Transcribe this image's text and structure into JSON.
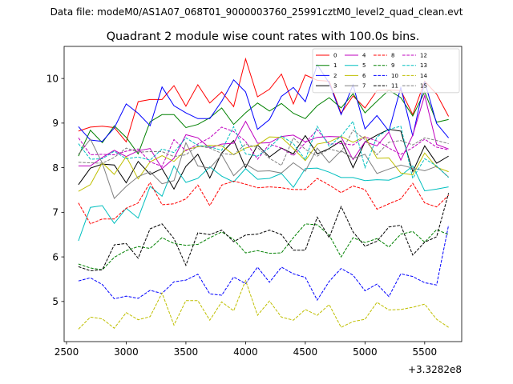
{
  "suptitle": "Data file: modeM0/AS1A07_068T01_9000003760_25991cztM0_level2_quad_clean.evt",
  "chart_data": {
    "type": "line",
    "title": "Quadrant 2 module wise count rates with 100.0s bins.",
    "xlabel": "",
    "ylabel": "",
    "x_offset_label": "+3.3282e8",
    "xlim": [
      2480,
      5810
    ],
    "ylim": [
      4.1,
      10.72
    ],
    "xticks": [
      2500,
      3000,
      3500,
      4000,
      4500,
      5000,
      5500
    ],
    "yticks": [
      5,
      6,
      7,
      8,
      9,
      10
    ],
    "grid": false,
    "legend_position": "top-right",
    "legend_columns": 4,
    "x": [
      2600,
      2700,
      2800,
      2900,
      3000,
      3100,
      3200,
      3300,
      3400,
      3500,
      3600,
      3700,
      3800,
      3900,
      4000,
      4100,
      4200,
      4300,
      4400,
      4500,
      4600,
      4700,
      4800,
      4900,
      5000,
      5100,
      5200,
      5300,
      5400,
      5500,
      5600,
      5700
    ],
    "series": [
      {
        "name": "0",
        "color": "#ff0000",
        "dash": "solid",
        "values": [
          8.82,
          8.91,
          8.93,
          8.9,
          8.58,
          9.48,
          9.53,
          9.53,
          9.84,
          9.38,
          9.86,
          9.45,
          9.7,
          9.37,
          10.44,
          9.59,
          9.76,
          10.1,
          9.43,
          10.08,
          9.96,
          9.94,
          9.22,
          9.61,
          9.34,
          9.73,
          9.74,
          9.73,
          9.19,
          9.94,
          9.65,
          9.15
        ]
      },
      {
        "name": "1",
        "color": "#008000",
        "dash": "solid",
        "values": [
          8.26,
          8.84,
          8.56,
          8.94,
          8.68,
          8.31,
          9.03,
          9.19,
          9.19,
          8.9,
          8.97,
          9.12,
          9.34,
          8.97,
          9.23,
          9.45,
          9.27,
          9.44,
          9.22,
          9.1,
          9.39,
          9.57,
          9.34,
          9.66,
          9.23,
          9.49,
          9.74,
          9.57,
          9.16,
          9.7,
          9.02,
          9.08
        ]
      },
      {
        "name": "2",
        "color": "#0000ff",
        "dash": "solid",
        "values": [
          8.92,
          8.62,
          8.59,
          8.89,
          9.43,
          9.22,
          8.94,
          9.81,
          9.39,
          9.23,
          9.1,
          9.1,
          9.49,
          9.97,
          9.7,
          8.86,
          9.08,
          9.6,
          9.8,
          9.48,
          10.31,
          9.9,
          9.19,
          9.86,
          8.87,
          9.17,
          8.82,
          9.8,
          8.71,
          9.93,
          8.99,
          8.67
        ]
      },
      {
        "name": "3",
        "color": "#000000",
        "dash": "solid",
        "values": [
          7.62,
          7.99,
          8.08,
          8.06,
          7.66,
          8.14,
          7.85,
          7.98,
          7.52,
          8.03,
          8.3,
          7.77,
          8.33,
          8.61,
          8.0,
          8.51,
          8.24,
          8.44,
          8.31,
          8.72,
          8.31,
          8.43,
          8.6,
          8.0,
          8.58,
          8.73,
          8.86,
          8.82,
          7.91,
          8.49,
          8.1,
          8.26
        ]
      },
      {
        "name": "4",
        "color": "#bf00bf",
        "dash": "solid",
        "values": [
          8.04,
          8.04,
          8.23,
          8.39,
          8.25,
          8.38,
          8.43,
          7.98,
          8.21,
          8.74,
          8.67,
          8.44,
          8.53,
          8.55,
          9.04,
          8.55,
          8.56,
          8.7,
          8.73,
          8.58,
          8.68,
          8.7,
          8.69,
          8.18,
          8.58,
          8.49,
          8.8,
          8.17,
          8.73,
          9.62,
          8.52,
          8.42
        ]
      },
      {
        "name": "5",
        "color": "#00bfbf",
        "dash": "solid",
        "values": [
          6.36,
          7.11,
          7.15,
          6.75,
          7.09,
          6.87,
          7.58,
          7.36,
          8.04,
          7.67,
          7.76,
          8.02,
          7.81,
          7.68,
          7.98,
          7.74,
          7.76,
          7.87,
          7.56,
          7.98,
          7.99,
          7.9,
          7.78,
          7.78,
          7.71,
          7.73,
          7.72,
          7.82,
          8.04,
          7.48,
          7.52,
          7.57
        ]
      },
      {
        "name": "6",
        "color": "#bfbf00",
        "dash": "solid",
        "values": [
          7.47,
          7.62,
          8.11,
          7.85,
          8.25,
          7.75,
          8.13,
          8.27,
          8.14,
          8.4,
          8.47,
          8.5,
          8.49,
          8.29,
          8.44,
          8.51,
          8.69,
          8.68,
          8.43,
          8.16,
          8.53,
          8.58,
          8.7,
          8.57,
          8.7,
          8.21,
          8.22,
          7.88,
          7.84,
          8.33,
          8.01,
          7.91
        ]
      },
      {
        "name": "7",
        "color": "#808080",
        "dash": "solid",
        "values": [
          8.3,
          8.64,
          8.1,
          7.31,
          7.58,
          7.8,
          7.91,
          7.64,
          7.71,
          8.56,
          8.04,
          7.99,
          8.29,
          7.82,
          8.08,
          7.92,
          7.93,
          7.88,
          8.11,
          7.92,
          8.44,
          8.11,
          8.38,
          8.21,
          8.3,
          7.87,
          7.97,
          8.06,
          7.99,
          7.93,
          8.03,
          7.79
        ]
      },
      {
        "name": "8",
        "color": "#ff0000",
        "dash": "dashed",
        "values": [
          7.21,
          6.74,
          6.85,
          6.85,
          7.09,
          7.21,
          7.67,
          7.17,
          7.19,
          7.3,
          7.61,
          7.15,
          7.61,
          7.7,
          7.63,
          7.55,
          7.57,
          7.55,
          7.51,
          7.51,
          7.76,
          7.61,
          7.44,
          7.59,
          7.51,
          7.07,
          7.19,
          7.3,
          7.65,
          7.21,
          7.12,
          7.38
        ]
      },
      {
        "name": "9",
        "color": "#008000",
        "dash": "dashed",
        "values": [
          5.84,
          5.75,
          5.71,
          5.99,
          6.14,
          6.23,
          6.19,
          6.43,
          6.3,
          6.26,
          6.28,
          6.43,
          6.56,
          6.39,
          6.09,
          6.14,
          6.08,
          6.09,
          6.43,
          6.74,
          6.72,
          6.49,
          6.0,
          6.43,
          6.32,
          6.41,
          6.22,
          6.51,
          6.57,
          6.33,
          6.61,
          6.5
        ]
      },
      {
        "name": "10",
        "color": "#0000ff",
        "dash": "dashed",
        "values": [
          5.46,
          5.53,
          5.38,
          5.06,
          5.12,
          5.07,
          5.25,
          5.18,
          5.44,
          5.48,
          5.61,
          5.17,
          5.14,
          5.55,
          5.4,
          5.77,
          5.43,
          5.77,
          5.62,
          5.54,
          5.03,
          5.45,
          5.74,
          5.59,
          5.24,
          5.39,
          5.11,
          5.62,
          5.56,
          5.42,
          5.37,
          6.71
        ]
      },
      {
        "name": "11",
        "color": "#000000",
        "dash": "dashed",
        "values": [
          5.78,
          5.69,
          5.71,
          6.27,
          6.3,
          5.97,
          6.63,
          6.74,
          6.41,
          5.81,
          6.54,
          6.5,
          6.6,
          6.34,
          6.49,
          6.51,
          6.6,
          6.5,
          6.15,
          6.15,
          6.89,
          6.43,
          7.13,
          6.56,
          6.24,
          6.35,
          6.67,
          6.71,
          6.04,
          6.33,
          6.45,
          7.43
        ]
      },
      {
        "name": "12",
        "color": "#bf00bf",
        "dash": "dashed",
        "values": [
          8.67,
          8.29,
          8.3,
          8.29,
          8.37,
          8.42,
          8.13,
          8.03,
          8.63,
          8.38,
          8.53,
          8.67,
          8.91,
          8.81,
          8.59,
          8.19,
          8.53,
          8.44,
          8.27,
          8.56,
          8.85,
          8.53,
          8.54,
          8.51,
          8.69,
          8.6,
          8.44,
          8.3,
          8.45,
          8.64,
          8.46,
          8.4
        ]
      },
      {
        "name": "13",
        "color": "#00bfbf",
        "dash": "dashed",
        "values": [
          8.54,
          8.19,
          8.2,
          8.37,
          8.2,
          8.24,
          8.17,
          8.42,
          8.34,
          8.67,
          8.5,
          8.47,
          8.39,
          8.92,
          8.31,
          8.26,
          8.45,
          8.71,
          8.54,
          8.18,
          8.93,
          8.48,
          8.71,
          9.04,
          8.0,
          8.69,
          8.86,
          8.93,
          7.76,
          8.2,
          8.04,
          7.78
        ]
      },
      {
        "name": "14",
        "color": "#bfbf00",
        "dash": "dashed",
        "values": [
          4.38,
          4.65,
          4.61,
          4.4,
          4.75,
          4.59,
          4.66,
          5.19,
          4.47,
          5.02,
          5.02,
          4.58,
          4.99,
          4.79,
          5.47,
          4.69,
          5.01,
          4.65,
          4.58,
          4.82,
          4.69,
          4.93,
          4.42,
          4.55,
          4.6,
          4.98,
          4.81,
          4.82,
          4.87,
          4.94,
          4.6,
          4.42
        ]
      },
      {
        "name": "15",
        "color": "#808080",
        "dash": "dashed",
        "values": [
          8.12,
          8.11,
          8.1,
          8.23,
          8.44,
          8.35,
          8.36,
          8.36,
          8.25,
          8.29,
          8.49,
          8.44,
          8.32,
          8.29,
          8.53,
          8.45,
          8.21,
          8.05,
          8.67,
          8.41,
          8.26,
          8.42,
          8.35,
          8.84,
          8.63,
          8.29,
          8.57,
          8.61,
          8.51,
          8.67,
          8.61,
          8.54
        ]
      }
    ]
  }
}
